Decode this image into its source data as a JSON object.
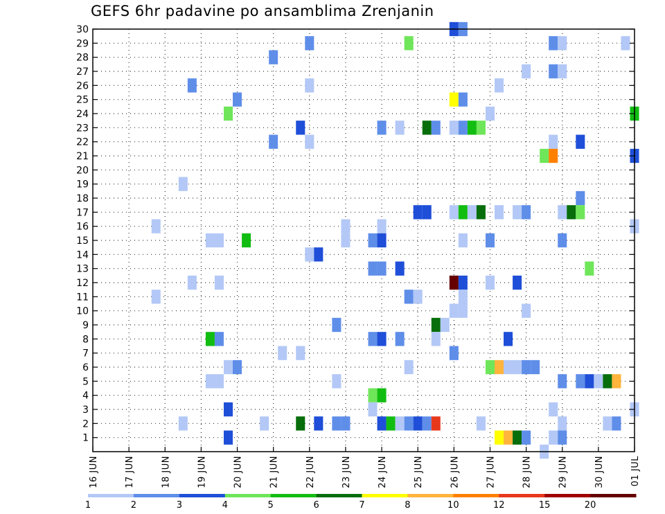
{
  "chart_data": {
    "type": "heatmap",
    "title": "GEFS 6hr padavine po ansamblima Zrenjanin",
    "xlabel": "",
    "ylabel": "",
    "x_ticks": [
      "16 JUN",
      "17 JUN",
      "18 JUN",
      "19 JUN",
      "20 JUN",
      "21 JUN",
      "22 JUN",
      "23 JUN",
      "24 JUN",
      "25 JUN",
      "26 JUN",
      "27 JUN",
      "28 JUN",
      "29 JUN",
      "30 JUN",
      "01 JUL"
    ],
    "y_ticks": [
      "1",
      "2",
      "3",
      "4",
      "5",
      "6",
      "7",
      "8",
      "9",
      "10",
      "11",
      "12",
      "13",
      "14",
      "15",
      "16",
      "17",
      "18",
      "19",
      "20",
      "21",
      "22",
      "23",
      "24",
      "25",
      "26",
      "27",
      "28",
      "29",
      "30"
    ],
    "grid": true,
    "legend": "bottom",
    "colorbar": {
      "labels": [
        "1",
        "2",
        "3",
        "4",
        "5",
        "6",
        "7",
        "8",
        "10",
        "12",
        "15",
        "20"
      ],
      "colors": [
        "#b3c8f6",
        "#5f8ee9",
        "#1f4fd8",
        "#6fe65a",
        "#12bd12",
        "#076e0b",
        "#ffff00",
        "#ffb43c",
        "#ff8000",
        "#e8381c",
        "#a00000",
        "#660000"
      ]
    },
    "cells": [
      {
        "day": 26.0,
        "y": 30,
        "c": "#1f4fd8"
      },
      {
        "day": 26.25,
        "y": 30,
        "c": "#5f8ee9"
      },
      {
        "day": 22.0,
        "y": 29,
        "c": "#5f8ee9"
      },
      {
        "day": 24.75,
        "y": 29,
        "c": "#6fe65a"
      },
      {
        "day": 28.75,
        "y": 29,
        "c": "#5f8ee9"
      },
      {
        "day": 29.0,
        "y": 29,
        "c": "#b3c8f6"
      },
      {
        "day": 30.75,
        "y": 29,
        "c": "#b3c8f6"
      },
      {
        "day": 21.0,
        "y": 28,
        "c": "#5f8ee9"
      },
      {
        "day": 28.0,
        "y": 27,
        "c": "#b3c8f6"
      },
      {
        "day": 28.75,
        "y": 27,
        "c": "#5f8ee9"
      },
      {
        "day": 29.0,
        "y": 27,
        "c": "#b3c8f6"
      },
      {
        "day": 18.75,
        "y": 26,
        "c": "#5f8ee9"
      },
      {
        "day": 22.0,
        "y": 26,
        "c": "#b3c8f6"
      },
      {
        "day": 27.25,
        "y": 26,
        "c": "#b3c8f6"
      },
      {
        "day": 20.0,
        "y": 25,
        "c": "#5f8ee9"
      },
      {
        "day": 26.0,
        "y": 25,
        "c": "#ffff00"
      },
      {
        "day": 26.25,
        "y": 25,
        "c": "#5f8ee9"
      },
      {
        "day": 19.75,
        "y": 24,
        "c": "#6fe65a"
      },
      {
        "day": 27.0,
        "y": 24,
        "c": "#b3c8f6"
      },
      {
        "day": 31.0,
        "y": 24,
        "c": "#12bd12"
      },
      {
        "day": 21.75,
        "y": 23,
        "c": "#1f4fd8"
      },
      {
        "day": 24.0,
        "y": 23,
        "c": "#5f8ee9"
      },
      {
        "day": 24.5,
        "y": 23,
        "c": "#b3c8f6"
      },
      {
        "day": 25.25,
        "y": 23,
        "c": "#076e0b"
      },
      {
        "day": 25.5,
        "y": 23,
        "c": "#5f8ee9"
      },
      {
        "day": 26.0,
        "y": 23,
        "c": "#b3c8f6"
      },
      {
        "day": 26.25,
        "y": 23,
        "c": "#5f8ee9"
      },
      {
        "day": 26.5,
        "y": 23,
        "c": "#12bd12"
      },
      {
        "day": 26.75,
        "y": 23,
        "c": "#6fe65a"
      },
      {
        "day": 21.0,
        "y": 22,
        "c": "#5f8ee9"
      },
      {
        "day": 22.0,
        "y": 22,
        "c": "#b3c8f6"
      },
      {
        "day": 28.75,
        "y": 22,
        "c": "#b3c8f6"
      },
      {
        "day": 29.5,
        "y": 22,
        "c": "#1f4fd8"
      },
      {
        "day": 28.5,
        "y": 21,
        "c": "#6fe65a"
      },
      {
        "day": 28.75,
        "y": 21,
        "c": "#ff8000"
      },
      {
        "day": 31.0,
        "y": 21,
        "c": "#1f4fd8"
      },
      {
        "day": 18.5,
        "y": 19,
        "c": "#b3c8f6"
      },
      {
        "day": 29.5,
        "y": 18,
        "c": "#5f8ee9"
      },
      {
        "day": 25.0,
        "y": 17,
        "c": "#1f4fd8"
      },
      {
        "day": 25.25,
        "y": 17,
        "c": "#1f4fd8"
      },
      {
        "day": 26.0,
        "y": 17,
        "c": "#b3c8f6"
      },
      {
        "day": 26.25,
        "y": 17,
        "c": "#12bd12"
      },
      {
        "day": 26.5,
        "y": 17,
        "c": "#b3c8f6"
      },
      {
        "day": 26.75,
        "y": 17,
        "c": "#076e0b"
      },
      {
        "day": 27.25,
        "y": 17,
        "c": "#b3c8f6"
      },
      {
        "day": 27.75,
        "y": 17,
        "c": "#b3c8f6"
      },
      {
        "day": 28.0,
        "y": 17,
        "c": "#5f8ee9"
      },
      {
        "day": 29.0,
        "y": 17,
        "c": "#b3c8f6"
      },
      {
        "day": 29.25,
        "y": 17,
        "c": "#076e0b"
      },
      {
        "day": 29.5,
        "y": 17,
        "c": "#6fe65a"
      },
      {
        "day": 17.75,
        "y": 16,
        "c": "#b3c8f6"
      },
      {
        "day": 23.0,
        "y": 16,
        "c": "#b3c8f6"
      },
      {
        "day": 24.0,
        "y": 16,
        "c": "#b3c8f6"
      },
      {
        "day": 31.0,
        "y": 16,
        "c": "#b3c8f6"
      },
      {
        "day": 19.25,
        "y": 15,
        "c": "#b3c8f6"
      },
      {
        "day": 19.5,
        "y": 15,
        "c": "#b3c8f6"
      },
      {
        "day": 20.25,
        "y": 15,
        "c": "#12bd12"
      },
      {
        "day": 23.0,
        "y": 15,
        "c": "#b3c8f6"
      },
      {
        "day": 23.75,
        "y": 15,
        "c": "#5f8ee9"
      },
      {
        "day": 24.0,
        "y": 15,
        "c": "#1f4fd8"
      },
      {
        "day": 26.25,
        "y": 15,
        "c": "#b3c8f6"
      },
      {
        "day": 27.0,
        "y": 15,
        "c": "#5f8ee9"
      },
      {
        "day": 29.0,
        "y": 15,
        "c": "#5f8ee9"
      },
      {
        "day": 22.0,
        "y": 14,
        "c": "#b3c8f6"
      },
      {
        "day": 22.25,
        "y": 14,
        "c": "#1f4fd8"
      },
      {
        "day": 23.75,
        "y": 13,
        "c": "#5f8ee9"
      },
      {
        "day": 24.0,
        "y": 13,
        "c": "#5f8ee9"
      },
      {
        "day": 24.5,
        "y": 13,
        "c": "#1f4fd8"
      },
      {
        "day": 29.75,
        "y": 13,
        "c": "#6fe65a"
      },
      {
        "day": 18.75,
        "y": 12,
        "c": "#b3c8f6"
      },
      {
        "day": 19.5,
        "y": 12,
        "c": "#b3c8f6"
      },
      {
        "day": 26.0,
        "y": 12,
        "c": "#660000"
      },
      {
        "day": 26.25,
        "y": 12,
        "c": "#1f4fd8"
      },
      {
        "day": 27.0,
        "y": 12,
        "c": "#b3c8f6"
      },
      {
        "day": 27.75,
        "y": 12,
        "c": "#1f4fd8"
      },
      {
        "day": 17.75,
        "y": 11,
        "c": "#b3c8f6"
      },
      {
        "day": 24.75,
        "y": 11,
        "c": "#5f8ee9"
      },
      {
        "day": 25.0,
        "y": 11,
        "c": "#b3c8f6"
      },
      {
        "day": 26.25,
        "y": 11,
        "c": "#b3c8f6"
      },
      {
        "day": 26.0,
        "y": 10,
        "c": "#b3c8f6"
      },
      {
        "day": 26.25,
        "y": 10,
        "c": "#b3c8f6"
      },
      {
        "day": 28.0,
        "y": 10,
        "c": "#b3c8f6"
      },
      {
        "day": 22.75,
        "y": 9,
        "c": "#5f8ee9"
      },
      {
        "day": 25.5,
        "y": 9,
        "c": "#076e0b"
      },
      {
        "day": 25.75,
        "y": 9,
        "c": "#b3c8f6"
      },
      {
        "day": 19.25,
        "y": 8,
        "c": "#12bd12"
      },
      {
        "day": 19.5,
        "y": 8,
        "c": "#5f8ee9"
      },
      {
        "day": 23.75,
        "y": 8,
        "c": "#5f8ee9"
      },
      {
        "day": 24.0,
        "y": 8,
        "c": "#1f4fd8"
      },
      {
        "day": 24.5,
        "y": 8,
        "c": "#5f8ee9"
      },
      {
        "day": 25.5,
        "y": 8,
        "c": "#b3c8f6"
      },
      {
        "day": 27.5,
        "y": 8,
        "c": "#1f4fd8"
      },
      {
        "day": 21.25,
        "y": 7,
        "c": "#b3c8f6"
      },
      {
        "day": 21.75,
        "y": 7,
        "c": "#b3c8f6"
      },
      {
        "day": 26.0,
        "y": 7,
        "c": "#5f8ee9"
      },
      {
        "day": 19.75,
        "y": 6,
        "c": "#b3c8f6"
      },
      {
        "day": 20.0,
        "y": 6,
        "c": "#5f8ee9"
      },
      {
        "day": 24.75,
        "y": 6,
        "c": "#b3c8f6"
      },
      {
        "day": 27.0,
        "y": 6,
        "c": "#6fe65a"
      },
      {
        "day": 27.25,
        "y": 6,
        "c": "#ffb43c"
      },
      {
        "day": 27.5,
        "y": 6,
        "c": "#b3c8f6"
      },
      {
        "day": 27.75,
        "y": 6,
        "c": "#b3c8f6"
      },
      {
        "day": 28.0,
        "y": 6,
        "c": "#5f8ee9"
      },
      {
        "day": 28.25,
        "y": 6,
        "c": "#5f8ee9"
      },
      {
        "day": 19.25,
        "y": 5,
        "c": "#b3c8f6"
      },
      {
        "day": 19.5,
        "y": 5,
        "c": "#b3c8f6"
      },
      {
        "day": 22.75,
        "y": 5,
        "c": "#b3c8f6"
      },
      {
        "day": 29.0,
        "y": 5,
        "c": "#5f8ee9"
      },
      {
        "day": 29.5,
        "y": 5,
        "c": "#5f8ee9"
      },
      {
        "day": 29.75,
        "y": 5,
        "c": "#1f4fd8"
      },
      {
        "day": 30.0,
        "y": 5,
        "c": "#b3c8f6"
      },
      {
        "day": 30.25,
        "y": 5,
        "c": "#076e0b"
      },
      {
        "day": 30.5,
        "y": 5,
        "c": "#ffb43c"
      },
      {
        "day": 23.75,
        "y": 4,
        "c": "#6fe65a"
      },
      {
        "day": 24.0,
        "y": 4,
        "c": "#12bd12"
      },
      {
        "day": 19.75,
        "y": 3,
        "c": "#1f4fd8"
      },
      {
        "day": 23.75,
        "y": 3,
        "c": "#b3c8f6"
      },
      {
        "day": 28.75,
        "y": 3,
        "c": "#b3c8f6"
      },
      {
        "day": 31.0,
        "y": 3,
        "c": "#b3c8f6"
      },
      {
        "day": 18.5,
        "y": 2,
        "c": "#b3c8f6"
      },
      {
        "day": 20.75,
        "y": 2,
        "c": "#b3c8f6"
      },
      {
        "day": 21.75,
        "y": 2,
        "c": "#076e0b"
      },
      {
        "day": 22.25,
        "y": 2,
        "c": "#1f4fd8"
      },
      {
        "day": 22.75,
        "y": 2,
        "c": "#5f8ee9"
      },
      {
        "day": 23.0,
        "y": 2,
        "c": "#5f8ee9"
      },
      {
        "day": 24.0,
        "y": 2,
        "c": "#1f4fd8"
      },
      {
        "day": 24.25,
        "y": 2,
        "c": "#12bd12"
      },
      {
        "day": 24.5,
        "y": 2,
        "c": "#b3c8f6"
      },
      {
        "day": 24.75,
        "y": 2,
        "c": "#5f8ee9"
      },
      {
        "day": 25.0,
        "y": 2,
        "c": "#1f4fd8"
      },
      {
        "day": 25.25,
        "y": 2,
        "c": "#5f8ee9"
      },
      {
        "day": 25.5,
        "y": 2,
        "c": "#e8381c"
      },
      {
        "day": 26.75,
        "y": 2,
        "c": "#b3c8f6"
      },
      {
        "day": 29.0,
        "y": 2,
        "c": "#b3c8f6"
      },
      {
        "day": 30.25,
        "y": 2,
        "c": "#b3c8f6"
      },
      {
        "day": 30.5,
        "y": 2,
        "c": "#5f8ee9"
      },
      {
        "day": 19.75,
        "y": 1,
        "c": "#1f4fd8"
      },
      {
        "day": 27.25,
        "y": 1,
        "c": "#ffff00"
      },
      {
        "day": 27.5,
        "y": 1,
        "c": "#ffb43c"
      },
      {
        "day": 27.75,
        "y": 1,
        "c": "#076e0b"
      },
      {
        "day": 28.0,
        "y": 1,
        "c": "#5f8ee9"
      },
      {
        "day": 28.75,
        "y": 1,
        "c": "#b3c8f6"
      },
      {
        "day": 29.0,
        "y": 1,
        "c": "#5f8ee9"
      },
      {
        "day": 28.5,
        "y": 0,
        "c": "#b3c8f6"
      }
    ]
  }
}
